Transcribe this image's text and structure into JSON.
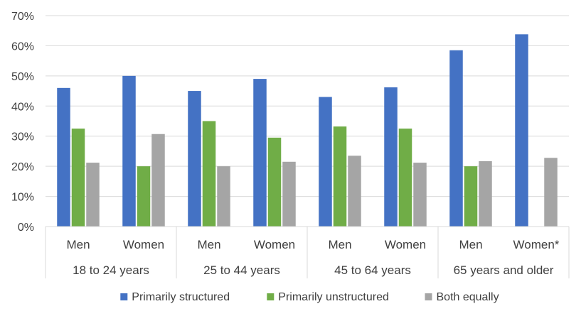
{
  "chart_data": {
    "type": "bar",
    "groups": [
      "18 to 24 years",
      "25 to 44 years",
      "45 to 64 years",
      "65 years and older"
    ],
    "categories": [
      "Men",
      "Women",
      "Men",
      "Women",
      "Men",
      "Women",
      "Men",
      "Women*"
    ],
    "series": [
      {
        "name": "Primarily structured",
        "color": "#4472C4",
        "values": [
          46,
          50,
          45,
          49,
          43,
          46.2,
          58.5,
          63.8
        ]
      },
      {
        "name": "Primarily unstructured",
        "color": "#70AD47",
        "values": [
          32.5,
          20,
          35,
          29.5,
          33.2,
          32.5,
          20,
          null
        ]
      },
      {
        "name": "Both equally",
        "color": "#A5A5A5",
        "values": [
          21.2,
          30.7,
          20,
          21.5,
          23.5,
          21.2,
          21.7,
          22.8
        ]
      }
    ],
    "yticks": [
      "0%",
      "10%",
      "20%",
      "30%",
      "40%",
      "50%",
      "60%",
      "70%"
    ],
    "ylim": [
      0,
      70
    ],
    "grid": true,
    "legend_position": "bottom"
  }
}
